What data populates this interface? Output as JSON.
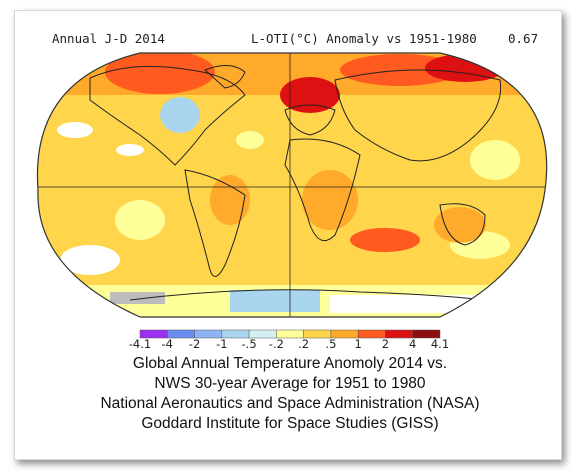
{
  "header": {
    "period": "Annual J-D 2014",
    "title": "L-OTI(°C) Anomaly vs 1951-1980",
    "global_mean": "0.67"
  },
  "legend": {
    "labels": [
      "-4.1",
      "-4",
      "-2",
      "-1",
      "-.5",
      "-.2",
      ".2",
      ".5",
      "1",
      "2",
      "4",
      "4.1"
    ],
    "colors": [
      "#9b2ff0",
      "#6a8cf2",
      "#8fb4f5",
      "#a9d5ef",
      "#d4f0f3",
      "#ffffff",
      "#ffff99",
      "#ffd54c",
      "#ffaa2a",
      "#ff5a1f",
      "#dd1111",
      "#8b0d0d"
    ]
  },
  "caption": {
    "line1": "Global Annual Temperature Anomoly 2014 vs.",
    "line2": "NWS 30-year Average for 1951 to 1980",
    "line3": "National Aeronautics and Space Administration (NASA)",
    "line4": "Goddard Institute for Space Studies (GISS)"
  },
  "map": {
    "projection": "Robinson",
    "ocean_base_color": "#ffd54c",
    "gridlines": "equator and prime meridian"
  }
}
